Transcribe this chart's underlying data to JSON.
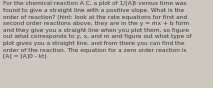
{
  "text": "For the chemical reaction A C, a plot of 1/[A]t versus time was\nfound to give a straight line with a positive slope. What is the\norder of reaction? (hint: look at the rate equations for first and\nsecond order reactions above, they are in the y = mx + b form\nand they give you a straight line when you plot them, so figure\nout what corresponds to y, x, and m and figure out what type of\nplot gives you a straight line, and from there you can find the\norder of the reaction. The equation for a zero order reaction is\n[A] = [A]0 - kt)",
  "font_size": 4.2,
  "text_color": "#3a3530",
  "bg_color": "#ccc8c0",
  "font_family": "DejaVu Sans"
}
